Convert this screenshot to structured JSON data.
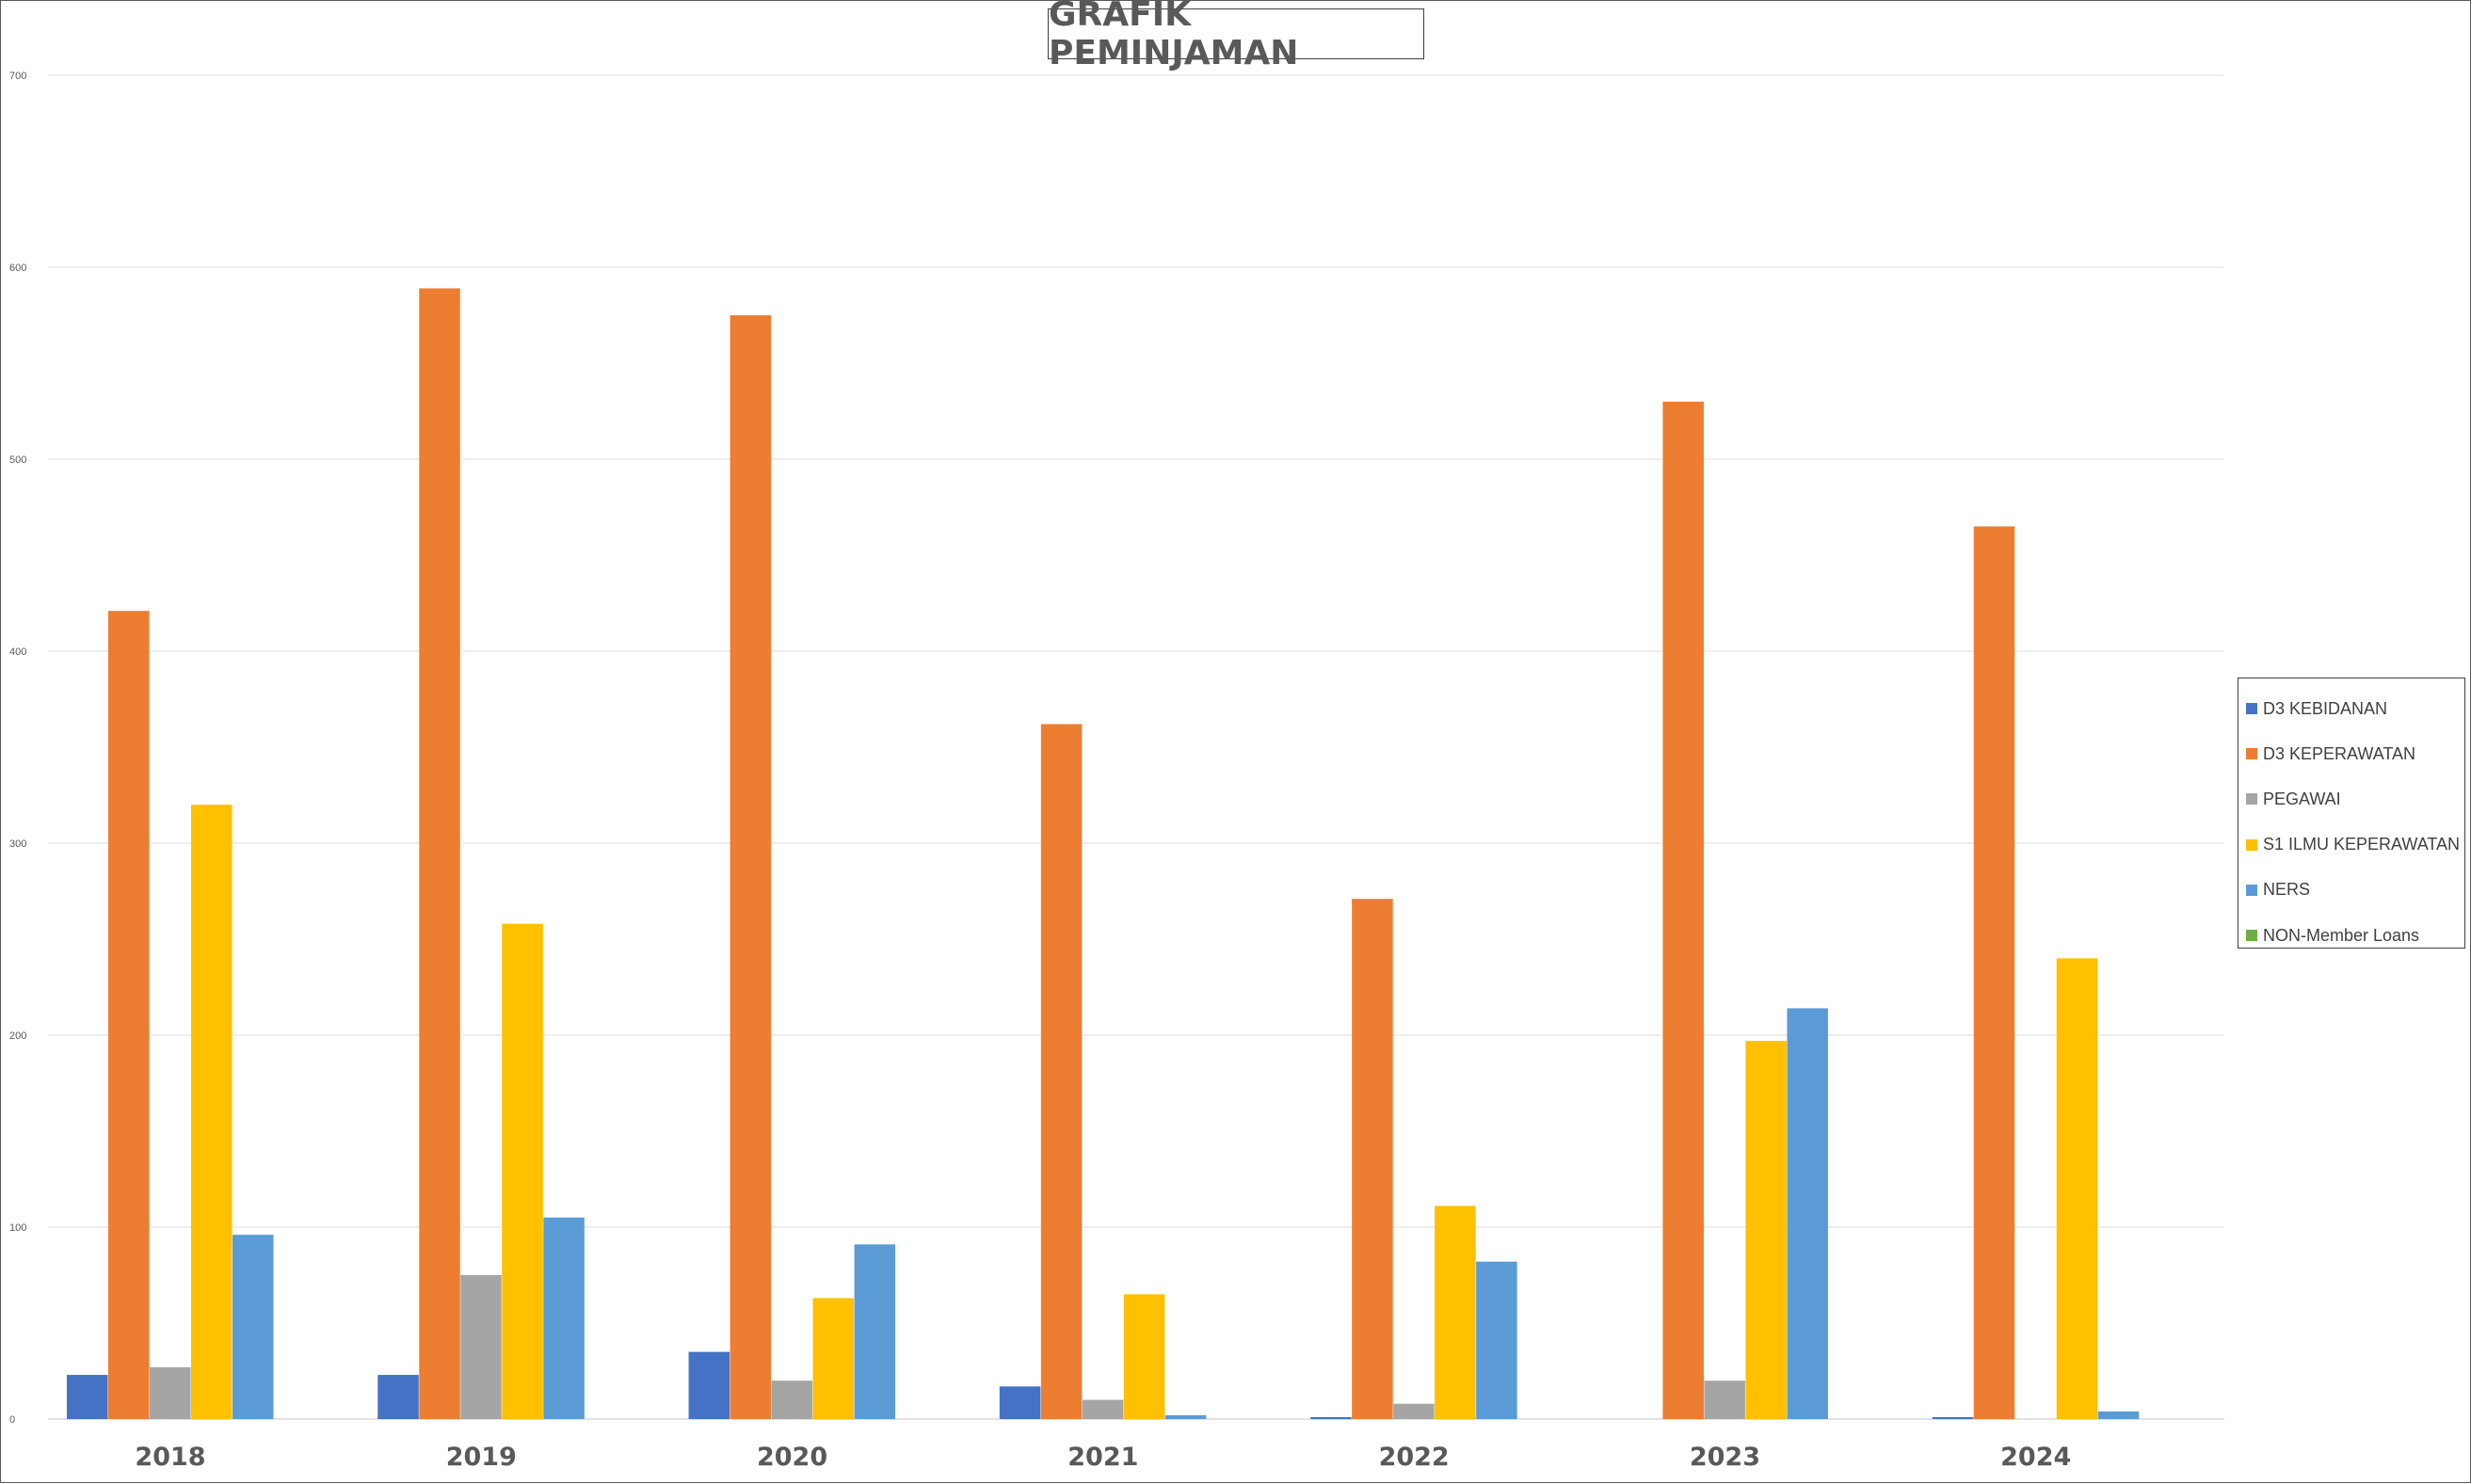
{
  "chart_data": {
    "type": "bar",
    "title": "GRAFIK PEMINJAMAN",
    "xlabel": "",
    "ylabel": "",
    "ylim": [
      0,
      700
    ],
    "yticks": [
      0,
      100,
      200,
      300,
      400,
      500,
      600,
      700
    ],
    "grid": true,
    "legend_position": "right",
    "categories": [
      "2018",
      "2019",
      "2020",
      "2021",
      "2022",
      "2023",
      "2024"
    ],
    "series": [
      {
        "name": "D3 KEBIDANAN",
        "color": "#4472C4",
        "values": [
          23,
          23,
          35,
          17,
          1,
          0,
          1
        ]
      },
      {
        "name": "D3 KEPERAWATAN",
        "color": "#ED7D31",
        "values": [
          421,
          589,
          575,
          362,
          271,
          530,
          465
        ]
      },
      {
        "name": "PEGAWAI",
        "color": "#A5A5A5",
        "values": [
          27,
          75,
          20,
          10,
          8,
          20,
          0
        ]
      },
      {
        "name": "S1 ILMU KEPERAWATAN",
        "color": "#FFC000",
        "values": [
          320,
          258,
          63,
          65,
          111,
          197,
          240
        ]
      },
      {
        "name": "NERS",
        "color": "#5B9BD5",
        "values": [
          96,
          105,
          91,
          2,
          82,
          214,
          4
        ]
      },
      {
        "name": "NON-Member Loans",
        "color": "#70AD47",
        "values": [
          0,
          0,
          0,
          0,
          0,
          0,
          0
        ]
      }
    ]
  }
}
